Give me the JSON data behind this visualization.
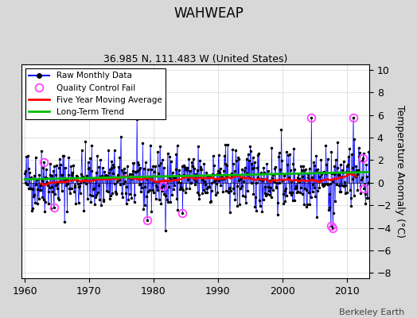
{
  "title": "WAHWEAP",
  "subtitle": "36.985 N, 111.483 W (United States)",
  "credit": "Berkeley Earth",
  "ylabel": "Temperature Anomaly (°C)",
  "ylim": [
    -8.5,
    10.5
  ],
  "xlim": [
    1959.5,
    2013.5
  ],
  "yticks": [
    -8,
    -6,
    -4,
    -2,
    0,
    2,
    4,
    6,
    8,
    10
  ],
  "xticks": [
    1960,
    1970,
    1980,
    1990,
    2000,
    2010
  ],
  "raw_color": "#0000ff",
  "ma_color": "#ff0000",
  "trend_color": "#00bb00",
  "qc_color": "#ff44ff",
  "background_color": "#ffffff",
  "fig_facecolor": "#d8d8d8",
  "title_fontsize": 12,
  "subtitle_fontsize": 9,
  "axis_fontsize": 9,
  "seed": 42
}
